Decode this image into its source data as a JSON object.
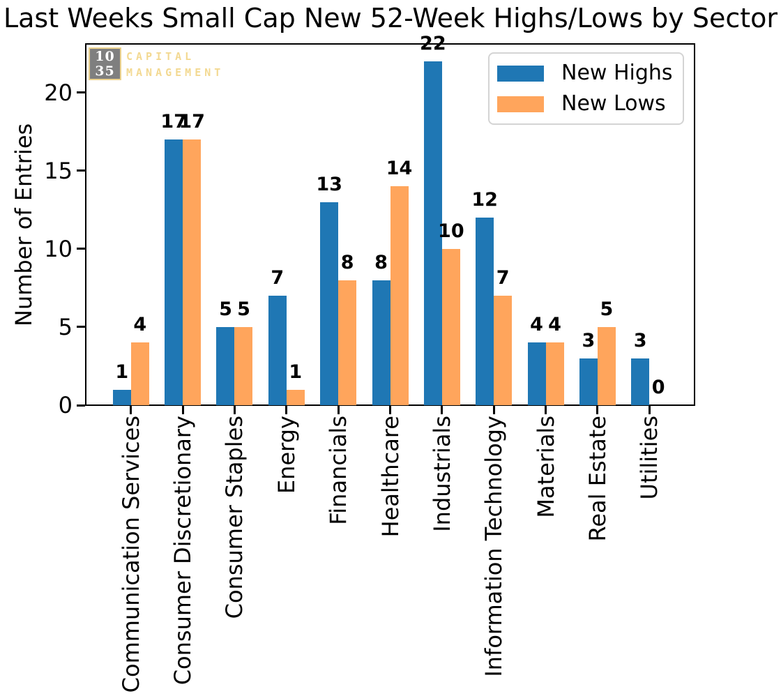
{
  "watermark": {
    "box_line1": "10",
    "box_line2": "35",
    "label_line1": "CAPITAL",
    "label_line2": "MANAGEMENT",
    "box_color": "#7f7f7f",
    "accent_color": "#f3d992"
  },
  "chart_data": {
    "type": "bar",
    "title": "Last Weeks Small Cap New 52-Week Highs/Lows by Sector",
    "categories": [
      "Communication Services",
      "Consumer Discretionary",
      "Consumer Staples",
      "Energy",
      "Financials",
      "Healthcare",
      "Industrials",
      "Information Technology",
      "Materials",
      "Real Estate",
      "Utilities"
    ],
    "series": [
      {
        "name": "New Highs",
        "color": "#1f77b4",
        "values": [
          1,
          17,
          5,
          7,
          13,
          8,
          22,
          12,
          4,
          3,
          3
        ]
      },
      {
        "name": "New Lows",
        "color": "#ffa55c",
        "values": [
          4,
          17,
          5,
          1,
          8,
          14,
          10,
          7,
          4,
          5,
          0
        ]
      }
    ],
    "xlabel": "",
    "ylabel": "Number of Entries",
    "yticks": [
      0,
      5,
      10,
      15,
      20
    ],
    "ylim": [
      0,
      23.2
    ],
    "bar_value_labels": true,
    "legend_position": "upper right",
    "grid": false
  }
}
